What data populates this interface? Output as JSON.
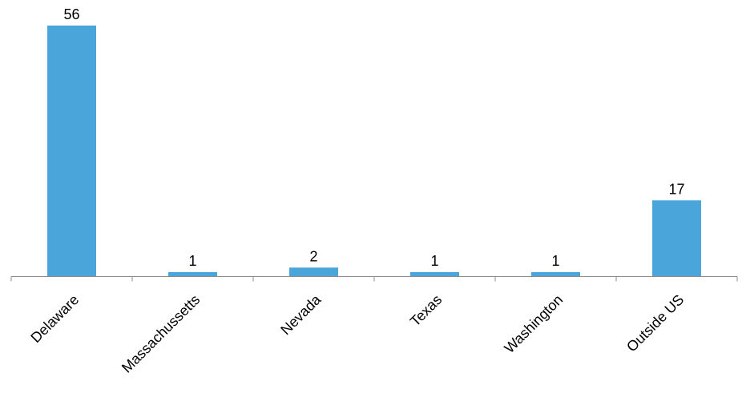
{
  "chart_data": {
    "type": "bar",
    "categories": [
      "Delaware",
      "Massachussetts",
      "Nevada",
      "Texas",
      "Washington",
      "Outside US"
    ],
    "values": [
      56,
      1,
      2,
      1,
      1,
      17
    ],
    "data_labels": [
      "56",
      "1",
      "2",
      "1",
      "1",
      "17"
    ],
    "title": "",
    "xlabel": "",
    "ylabel": "",
    "ylim": [
      0,
      60
    ],
    "grid": false,
    "legend": "none",
    "bar_color": "#4aa6da",
    "axis_color": "#8c8c8c"
  }
}
